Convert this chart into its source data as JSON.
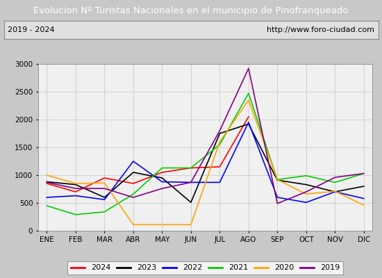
{
  "title": "Evolucion Nº Turistas Nacionales en el municipio de Pinofranqueado",
  "subtitle_left": "2019 - 2024",
  "subtitle_right": "http://www.foro-ciudad.com",
  "title_bg_color": "#5b9bd5",
  "title_text_color": "white",
  "months": [
    "ENE",
    "FEB",
    "MAR",
    "ABR",
    "MAY",
    "JUN",
    "JUL",
    "AGO",
    "SEP",
    "OCT",
    "NOV",
    "DIC"
  ],
  "ylim": [
    0,
    3000
  ],
  "yticks": [
    0,
    500,
    1000,
    1500,
    2000,
    2500,
    3000
  ],
  "series": {
    "2024": {
      "color": "red",
      "data": [
        850,
        700,
        950,
        850,
        1050,
        1130,
        1150,
        2050,
        null,
        null,
        null,
        null
      ]
    },
    "2023": {
      "color": "black",
      "data": [
        880,
        830,
        600,
        1050,
        950,
        510,
        1750,
        1920,
        910,
        830,
        700,
        800
      ]
    },
    "2022": {
      "color": "blue",
      "data": [
        600,
        630,
        560,
        1250,
        880,
        870,
        870,
        1950,
        600,
        510,
        700,
        580
      ]
    },
    "2021": {
      "color": "#00cc00",
      "data": [
        450,
        290,
        340,
        660,
        1130,
        1130,
        1550,
        2470,
        920,
        990,
        870,
        1030
      ]
    },
    "2020": {
      "color": "orange",
      "data": [
        1000,
        850,
        860,
        110,
        110,
        110,
        1600,
        2350,
        920,
        660,
        710,
        460
      ]
    },
    "2019": {
      "color": "purple",
      "data": [
        870,
        760,
        760,
        600,
        760,
        870,
        1800,
        2920,
        490,
        700,
        960,
        1030
      ]
    }
  },
  "legend_order": [
    "2024",
    "2023",
    "2022",
    "2021",
    "2020",
    "2019"
  ],
  "background_color": "#e8e8e8",
  "plot_bg_color": "#f0f0f0",
  "outer_bg": "#c8c8c8"
}
